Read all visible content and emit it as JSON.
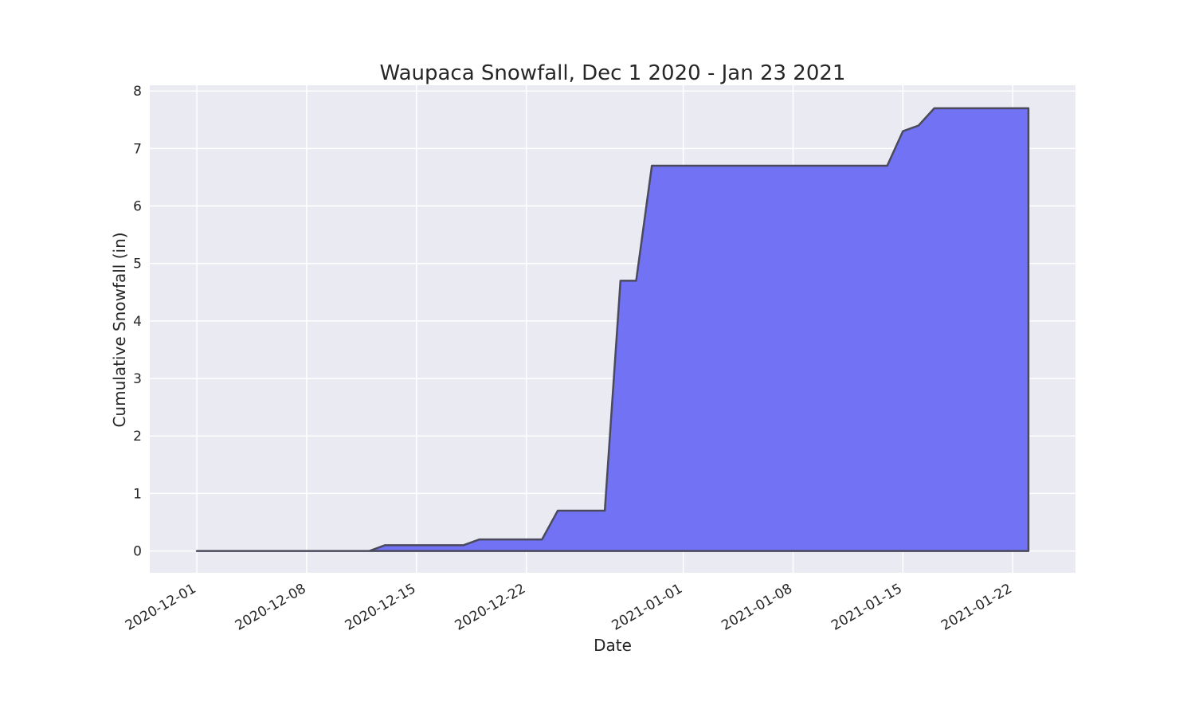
{
  "chart_data": {
    "type": "area",
    "title": "Waupaca Snowfall, Dec 1 2020 - Jan 23 2021",
    "xlabel": "Date",
    "ylabel": "Cumulative Snowfall (in)",
    "xlim": [
      "2020-11-28",
      "2021-01-26"
    ],
    "ylim": [
      -0.38,
      8.1
    ],
    "yticks": [
      0,
      1,
      2,
      3,
      4,
      5,
      6,
      7,
      8
    ],
    "xticks": [
      "2020-12-01",
      "2020-12-08",
      "2020-12-15",
      "2020-12-22",
      "2021-01-01",
      "2021-01-08",
      "2021-01-15",
      "2021-01-22"
    ],
    "grid": true,
    "colors": {
      "background": "#eaeaf2",
      "grid": "#ffffff",
      "fill": "#7272f5",
      "edge": "#4a4a5c"
    },
    "x": [
      "2020-12-01",
      "2020-12-02",
      "2020-12-03",
      "2020-12-04",
      "2020-12-05",
      "2020-12-06",
      "2020-12-07",
      "2020-12-08",
      "2020-12-09",
      "2020-12-10",
      "2020-12-11",
      "2020-12-12",
      "2020-12-13",
      "2020-12-14",
      "2020-12-15",
      "2020-12-16",
      "2020-12-17",
      "2020-12-18",
      "2020-12-19",
      "2020-12-20",
      "2020-12-21",
      "2020-12-22",
      "2020-12-23",
      "2020-12-24",
      "2020-12-25",
      "2020-12-26",
      "2020-12-27",
      "2020-12-28",
      "2020-12-29",
      "2020-12-30",
      "2020-12-31",
      "2021-01-01",
      "2021-01-02",
      "2021-01-03",
      "2021-01-04",
      "2021-01-05",
      "2021-01-06",
      "2021-01-07",
      "2021-01-08",
      "2021-01-09",
      "2021-01-10",
      "2021-01-11",
      "2021-01-12",
      "2021-01-13",
      "2021-01-14",
      "2021-01-15",
      "2021-01-16",
      "2021-01-17",
      "2021-01-18",
      "2021-01-19",
      "2021-01-20",
      "2021-01-21",
      "2021-01-22",
      "2021-01-23"
    ],
    "values": [
      0,
      0,
      0,
      0,
      0,
      0,
      0,
      0,
      0,
      0,
      0,
      0,
      0.1,
      0.1,
      0.1,
      0.1,
      0.1,
      0.1,
      0.2,
      0.2,
      0.2,
      0.2,
      0.2,
      0.7,
      0.7,
      0.7,
      0.7,
      4.7,
      4.7,
      6.7,
      6.7,
      6.7,
      6.7,
      6.7,
      6.7,
      6.7,
      6.7,
      6.7,
      6.7,
      6.7,
      6.7,
      6.7,
      6.7,
      6.7,
      6.7,
      7.3,
      7.4,
      7.7,
      7.7,
      7.7,
      7.7,
      7.7,
      7.7,
      7.7
    ]
  }
}
